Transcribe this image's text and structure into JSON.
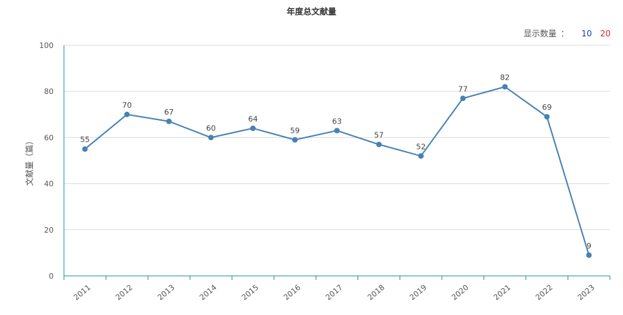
{
  "chart_data": {
    "type": "line",
    "title": "年度总文献量",
    "ylabel": "文献量（篇）",
    "xlabel": "",
    "categories": [
      "2011",
      "2012",
      "2013",
      "2014",
      "2015",
      "2016",
      "2017",
      "2018",
      "2019",
      "2020",
      "2021",
      "2022",
      "2023"
    ],
    "values": [
      55,
      70,
      67,
      60,
      64,
      59,
      63,
      57,
      52,
      77,
      82,
      69,
      9
    ],
    "ylim": [
      0,
      100
    ],
    "yticks": [
      0,
      20,
      40,
      60,
      80,
      100
    ],
    "grid": true,
    "line_color": "#4682b4"
  },
  "display_count": {
    "label": "显示数量",
    "colon": "：",
    "options": [
      {
        "label": "10",
        "color": "#1a3fb5"
      },
      {
        "label": "20",
        "color": "#e0262b"
      }
    ]
  }
}
